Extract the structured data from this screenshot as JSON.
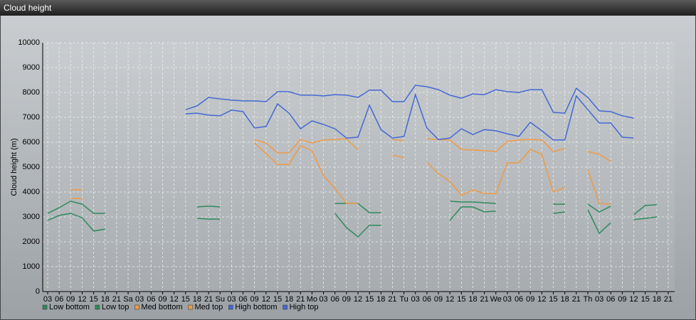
{
  "window_title": "Cloud height",
  "chart_data": {
    "type": "line",
    "ylabel": "Cloud height (m)",
    "categories": [
      "03",
      "06",
      "09",
      "12",
      "15",
      "18",
      "21",
      "Sa",
      "03",
      "06",
      "09",
      "12",
      "15",
      "18",
      "21",
      "Su",
      "03",
      "06",
      "09",
      "12",
      "15",
      "18",
      "21",
      "Mo",
      "03",
      "06",
      "09",
      "12",
      "15",
      "18",
      "21",
      "Tu",
      "03",
      "06",
      "09",
      "12",
      "15",
      "18",
      "21",
      "We",
      "03",
      "06",
      "09",
      "12",
      "15",
      "18",
      "21",
      "Th",
      "03",
      "06",
      "09",
      "12",
      "15",
      "18",
      "21"
    ],
    "ylim": [
      0,
      10000
    ],
    "yticks": [
      0,
      1000,
      2000,
      3000,
      4000,
      5000,
      6000,
      7000,
      8000,
      9000,
      10000
    ],
    "grid": true,
    "legend": "bottom-left",
    "series": [
      {
        "name": "Low bottom",
        "color": "#2f8a5c",
        "values": [
          2860,
          3060,
          3140,
          2970,
          2430,
          2510,
          null,
          null,
          null,
          null,
          null,
          null,
          null,
          2940,
          2910,
          2910,
          null,
          null,
          null,
          null,
          null,
          null,
          null,
          null,
          null,
          3140,
          2570,
          2200,
          2660,
          2660,
          null,
          null,
          null,
          null,
          null,
          2860,
          3400,
          3400,
          3200,
          3230,
          null,
          null,
          null,
          null,
          3140,
          3200,
          null,
          3290,
          2340,
          2770,
          null,
          2890,
          2940,
          3000,
          null
        ]
      },
      {
        "name": "Low top",
        "color": "#2f8a5c",
        "values": [
          3140,
          3370,
          3630,
          3510,
          3140,
          3140,
          null,
          null,
          null,
          null,
          null,
          null,
          null,
          3400,
          3430,
          3400,
          null,
          null,
          null,
          null,
          null,
          null,
          null,
          null,
          null,
          3540,
          3540,
          3540,
          3170,
          3170,
          null,
          null,
          null,
          null,
          null,
          3630,
          3600,
          3600,
          3570,
          3540,
          null,
          null,
          null,
          null,
          3510,
          3510,
          null,
          3510,
          3200,
          3430,
          null,
          3090,
          3460,
          3490,
          null
        ]
      },
      {
        "name": "Med bottom",
        "color": "#ef9a45",
        "values": [
          null,
          null,
          3740,
          3740,
          null,
          null,
          null,
          null,
          null,
          null,
          null,
          null,
          null,
          null,
          null,
          null,
          null,
          null,
          5970,
          5540,
          5110,
          5110,
          5860,
          5660,
          4660,
          4140,
          3540,
          3540,
          null,
          null,
          5490,
          5370,
          null,
          5200,
          4740,
          4430,
          3860,
          4090,
          3940,
          3940,
          5170,
          5170,
          5710,
          5510,
          4000,
          4170,
          null,
          4910,
          3540,
          3510,
          null,
          null,
          null,
          null,
          null
        ]
      },
      {
        "name": "Med top",
        "color": "#ef9a45",
        "values": [
          null,
          null,
          4090,
          4090,
          null,
          null,
          null,
          null,
          null,
          null,
          null,
          null,
          null,
          null,
          null,
          null,
          null,
          null,
          6110,
          5970,
          5570,
          5570,
          6110,
          5970,
          6090,
          6110,
          6140,
          5690,
          null,
          null,
          6110,
          6060,
          null,
          6140,
          6110,
          6090,
          5710,
          5690,
          5660,
          5630,
          6030,
          6090,
          6110,
          6090,
          5630,
          5740,
          null,
          5630,
          5510,
          5230,
          null,
          null,
          null,
          null,
          null
        ]
      },
      {
        "name": "High bottom",
        "color": "#4468d4",
        "values": [
          null,
          null,
          null,
          null,
          null,
          null,
          null,
          null,
          null,
          null,
          null,
          null,
          7140,
          7170,
          7090,
          7060,
          7290,
          7230,
          6570,
          6630,
          7540,
          7170,
          6540,
          6860,
          6710,
          6540,
          6170,
          6200,
          7490,
          6510,
          6170,
          6230,
          7910,
          6570,
          6110,
          6170,
          6540,
          6310,
          6510,
          6460,
          6340,
          6230,
          6800,
          6460,
          6090,
          6090,
          7860,
          7310,
          6770,
          6770,
          6200,
          6170,
          null,
          null,
          null
        ]
      },
      {
        "name": "High top",
        "color": "#4468d4",
        "values": [
          null,
          null,
          null,
          null,
          null,
          null,
          null,
          null,
          null,
          null,
          null,
          null,
          7310,
          7460,
          7800,
          7740,
          7690,
          7660,
          7660,
          7630,
          8030,
          8030,
          7890,
          7890,
          7860,
          7910,
          7890,
          7800,
          8090,
          8090,
          7630,
          7630,
          8290,
          8230,
          8110,
          7890,
          7770,
          7940,
          7910,
          8110,
          8030,
          8000,
          8110,
          8110,
          7200,
          7170,
          8170,
          7800,
          7260,
          7230,
          7060,
          6970,
          null,
          null,
          null
        ]
      }
    ]
  }
}
